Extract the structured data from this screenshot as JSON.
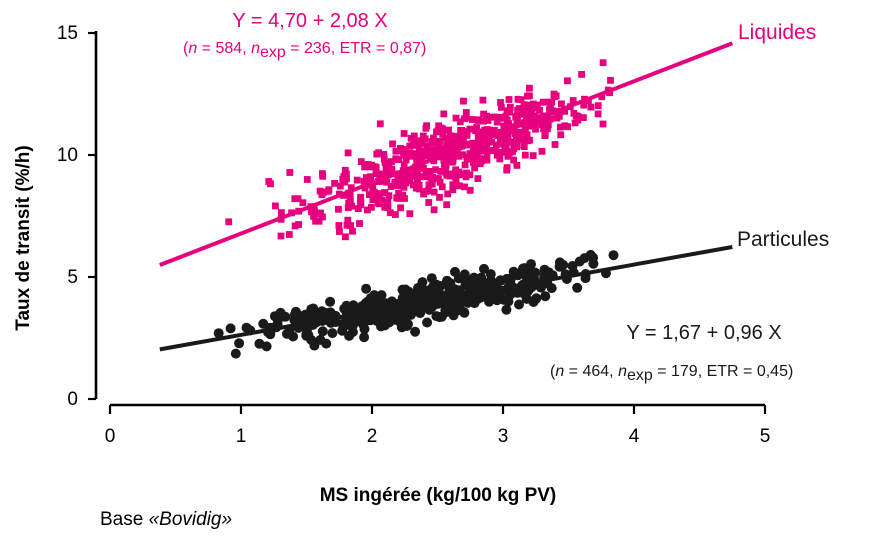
{
  "chart_data": {
    "type": "scatter",
    "title": "",
    "xlabel": "MS ingérée (kg/100 kg PV)",
    "ylabel": "Taux de transit (%/h)",
    "xlim": [
      0,
      5
    ],
    "ylim": [
      0,
      15
    ],
    "x_ticks": [
      "0",
      "1",
      "2",
      "3",
      "4",
      "5"
    ],
    "y_ticks": [
      "0",
      "5",
      "10",
      "15"
    ],
    "grid": false,
    "legend": "none",
    "source_note": {
      "prefix": "Base ",
      "name": "«Bovidig»"
    },
    "series": [
      {
        "name": "Liquides",
        "color": "#e6007e",
        "marker": "square",
        "equation": "Y = 4,70 + 2,08 X",
        "fit": {
          "intercept": 4.7,
          "slope": 2.08,
          "x_range": [
            0.38,
            4.75
          ]
        },
        "stats": {
          "n": "584",
          "nexp": "236",
          "etr": "0,87"
        },
        "point_count": 584,
        "x_range": [
          0.72,
          4.4
        ],
        "y_range": [
          4.7,
          15.2
        ],
        "noise_sd": 0.87,
        "seed": 11
      },
      {
        "name": "Particules",
        "color": "#1a1a1a",
        "marker": "circle",
        "equation": "Y = 1,67 + 0,96 X",
        "fit": {
          "intercept": 1.67,
          "slope": 0.96,
          "x_range": [
            0.38,
            4.75
          ]
        },
        "stats": {
          "n": "464",
          "nexp": "179",
          "etr": "0,45"
        },
        "point_count": 464,
        "x_range": [
          0.4,
          4.4
        ],
        "y_range": [
          1.6,
          6.3
        ],
        "noise_sd": 0.45,
        "seed": 29
      }
    ]
  }
}
